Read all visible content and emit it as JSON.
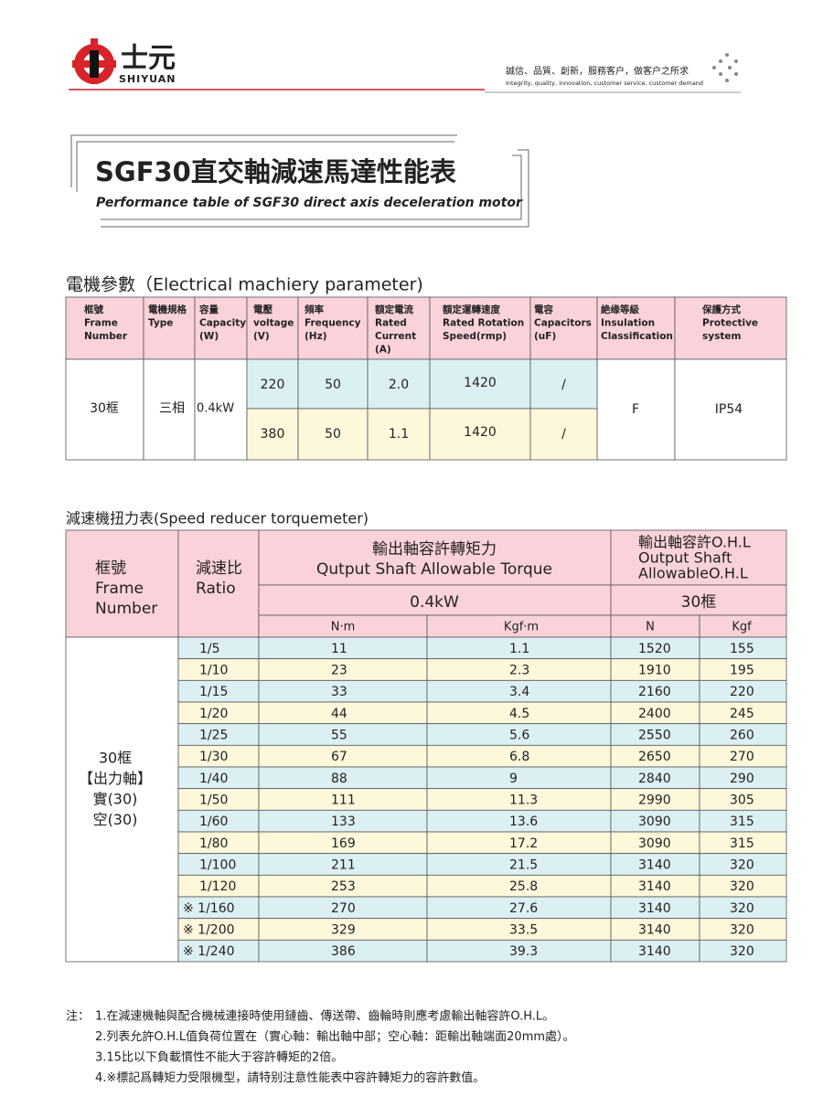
{
  "header": {
    "brand_cn": "士元",
    "brand_en": "SHIYUAN",
    "slogan_cn": "誠信、品質、創新，服務客户，做客户之所求",
    "slogan_en": "Integrity, quality, innovation, customer service, customer demand"
  },
  "title": {
    "main": "SGF30直交軸減速馬達性能表",
    "sub": "Performance table of SGF30 direct axis deceleration motor"
  },
  "electrical": {
    "heading": "電機參數（Electrical machiery parameter)",
    "columns": [
      [
        "框號",
        "Frame",
        "Number"
      ],
      [
        "電機規格",
        "Type"
      ],
      [
        "容量",
        "Capacity",
        "(W)"
      ],
      [
        "電壓",
        "voltage",
        "(V)"
      ],
      [
        "頻率",
        "Frequency",
        "(Hz)"
      ],
      [
        "額定電流",
        "Rated",
        "Current",
        "(A)"
      ],
      [
        "額定運轉速度",
        "Rated Rotation",
        "Speed(rmp)"
      ],
      [
        "電容",
        "Capacitors",
        "(uF)"
      ],
      [
        "絶缘等級",
        "Insulation",
        "Classification"
      ],
      [
        "保護方式",
        "Protective",
        "system"
      ]
    ],
    "frame": "30框",
    "type": "三相",
    "capacity": "0.4kW",
    "rows": [
      [
        "220",
        "50",
        "2.0",
        "1420",
        "/"
      ],
      [
        "380",
        "50",
        "1.1",
        "1420",
        "/"
      ]
    ],
    "insulation": "F",
    "protection": "IP54"
  },
  "torque": {
    "heading": "減速機扭力表(Speed reducer torquemeter)",
    "frame_header": [
      "框號",
      "Frame",
      "Number"
    ],
    "ratio_header": [
      "減速比",
      "Ratio"
    ],
    "torque_header": [
      "輸出軸容許轉矩力",
      "Qutput Shaft Allowable Torque"
    ],
    "ohl_header": [
      "輸出軸容許O.H.L",
      "Output Shaft",
      "AllowableO.H.L"
    ],
    "power": "0.4kW",
    "frame_size": "30框",
    "units": [
      "N·m",
      "Kgf·m",
      "N",
      "Kgf"
    ],
    "frame_body": [
      "30框",
      "【出力軸】",
      "實(30)",
      "空(30)"
    ],
    "rows": [
      [
        "1/5",
        "11",
        "1.1",
        "1520",
        "155"
      ],
      [
        "1/10",
        "23",
        "2.3",
        "1910",
        "195"
      ],
      [
        "1/15",
        "33",
        "3.4",
        "2160",
        "220"
      ],
      [
        "1/20",
        "44",
        "4.5",
        "2400",
        "245"
      ],
      [
        "1/25",
        "55",
        "5.6",
        "2550",
        "260"
      ],
      [
        "1/30",
        "67",
        "6.8",
        "2650",
        "270"
      ],
      [
        "1/40",
        "88",
        "9",
        "2840",
        "290"
      ],
      [
        "1/50",
        "111",
        "11.3",
        "2990",
        "305"
      ],
      [
        "1/60",
        "133",
        "13.6",
        "3090",
        "315"
      ],
      [
        "1/80",
        "169",
        "17.2",
        "3090",
        "315"
      ],
      [
        "1/100",
        "211",
        "21.5",
        "3140",
        "320"
      ],
      [
        "1/120",
        "253",
        "25.8",
        "3140",
        "320"
      ],
      [
        "※ 1/160",
        "270",
        "27.6",
        "3140",
        "320"
      ],
      [
        "※ 1/200",
        "329",
        "33.5",
        "3140",
        "320"
      ],
      [
        "※ 1/240",
        "386",
        "39.3",
        "3140",
        "320"
      ]
    ]
  },
  "notes": {
    "label": "注：",
    "items": [
      "1.在減速機軸與配合機械連接時使用鏈齒、傳送帶、齒輪時則應考慮輸出軸容許O.H.L。",
      "2.列表允許O.H.L值負荷位置在（實心軸：輸出軸中部；空心軸：距輸出軸端面20mm處）。",
      "3.15比以下負載慣性不能大于容許轉矩的2倍。",
      "4.※標記爲轉矩力受限機型，請特别注意性能表中容許轉矩力的容許數值。"
    ]
  }
}
